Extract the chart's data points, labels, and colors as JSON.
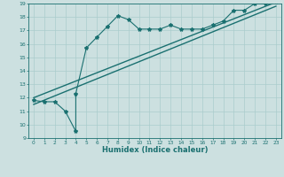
{
  "xlabel": "Humidex (Indice chaleur)",
  "xlim": [
    -0.5,
    23.5
  ],
  "ylim": [
    9,
    19
  ],
  "xticks": [
    0,
    1,
    2,
    3,
    4,
    5,
    6,
    7,
    8,
    9,
    10,
    11,
    12,
    13,
    14,
    15,
    16,
    17,
    18,
    19,
    20,
    21,
    22,
    23
  ],
  "yticks": [
    9,
    10,
    11,
    12,
    13,
    14,
    15,
    16,
    17,
    18,
    19
  ],
  "bg_color": "#cce0e0",
  "grid_color": "#aacccc",
  "line_color": "#1a7070",
  "line1_x": [
    0,
    1,
    2,
    3,
    4,
    4,
    5,
    6,
    7,
    8,
    9,
    10,
    11,
    12,
    13,
    14,
    15,
    16,
    17,
    18,
    19,
    20,
    21,
    22,
    23
  ],
  "line1_y": [
    11.8,
    11.7,
    11.7,
    11.0,
    9.5,
    12.3,
    15.7,
    16.5,
    17.3,
    18.1,
    17.8,
    17.1,
    17.1,
    17.1,
    17.4,
    17.1,
    17.1,
    17.1,
    17.4,
    17.7,
    18.5,
    18.5,
    19.0,
    19.0,
    19.1
  ],
  "line2_x": [
    0,
    23
  ],
  "line2_y": [
    12.0,
    19.1
  ],
  "line3_x": [
    0,
    23
  ],
  "line3_y": [
    11.5,
    18.8
  ]
}
